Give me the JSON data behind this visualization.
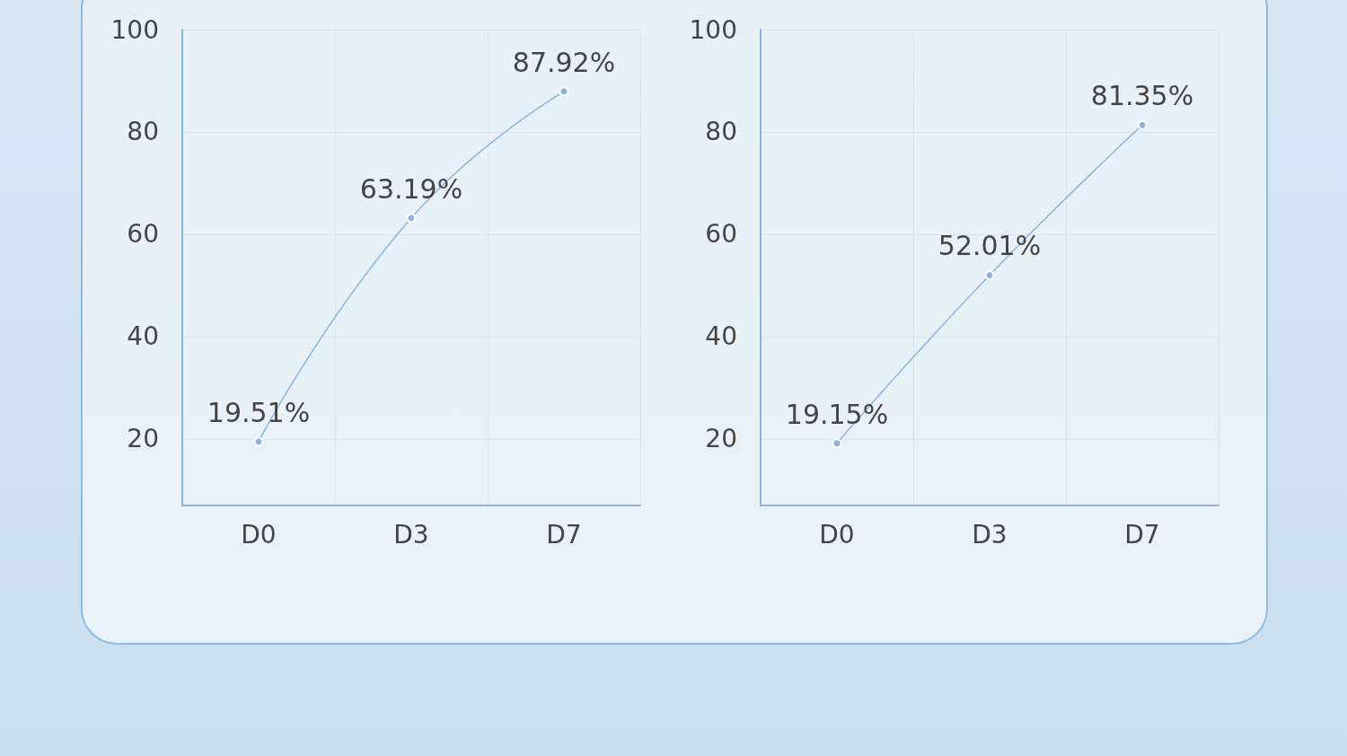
{
  "chart_data": [
    {
      "type": "line",
      "categories": [
        "D0",
        "D3",
        "D7"
      ],
      "series": [
        {
          "color": "#8fb3dc",
          "values": [
            19.51,
            63.19,
            87.92
          ]
        }
      ],
      "value_labels": [
        "19.51%",
        "63.19%",
        "87.92%"
      ],
      "ylim": [
        7,
        100
      ],
      "yticks": [
        20,
        40,
        60,
        80,
        100
      ],
      "grid": true,
      "marker": "circle"
    },
    {
      "type": "line",
      "categories": [
        "D0",
        "D3",
        "D7"
      ],
      "series": [
        {
          "color": "#8fb3dc",
          "values": [
            19.15,
            52.01,
            81.35
          ]
        }
      ],
      "value_labels": [
        "19.15%",
        "52.01%",
        "81.35%"
      ],
      "ylim": [
        7,
        100
      ],
      "yticks": [
        20,
        40,
        60,
        80,
        100
      ],
      "grid": true,
      "marker": "circle"
    }
  ]
}
